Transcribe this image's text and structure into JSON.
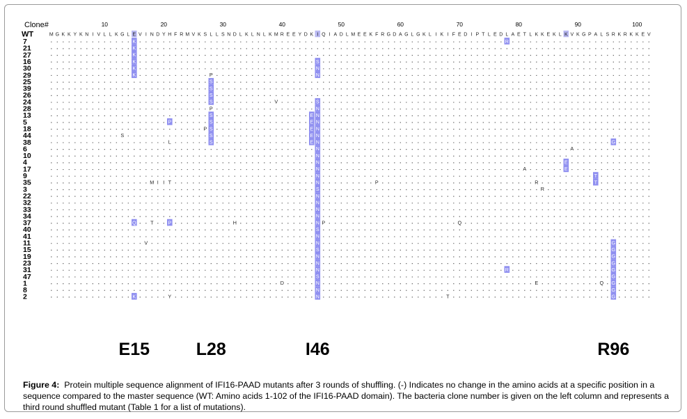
{
  "header": {
    "clone_label": "Clone#",
    "wt_label": "WT"
  },
  "ruler": [
    "10",
    "20",
    "30",
    "40",
    "50",
    "60",
    "70",
    "80",
    "90",
    "100"
  ],
  "wt_sequence": "MGKKYKNIVLLKGLEVINDYHFRMVKSLLSNDLKLNLKMREEYDKIQIADLMEEKFRGDAGLGKLIKIFEDIPTLEDLAETLKKEKLKVKGPALSRKRKKEV",
  "clones": [
    "7",
    "21",
    "27",
    "16",
    "30",
    "29",
    "25",
    "39",
    "26",
    "24",
    "28",
    "13",
    "5",
    "18",
    "44",
    "38",
    "6",
    "10",
    "4",
    "17",
    "9",
    "35",
    "3",
    "22",
    "32",
    "33",
    "34",
    "37",
    "40",
    "41",
    "11",
    "15",
    "19",
    "23",
    "31",
    "47",
    "1",
    "8",
    "2"
  ],
  "mutations": [
    {
      "row": 0,
      "pos": 15,
      "aa": "K",
      "hl": 1
    },
    {
      "row": 0,
      "pos": 78,
      "aa": "R",
      "hl": 1
    },
    {
      "row": 1,
      "pos": 15,
      "aa": "K",
      "hl": 1
    },
    {
      "row": 2,
      "pos": 15,
      "aa": "K",
      "hl": 1
    },
    {
      "row": 3,
      "pos": 15,
      "aa": "K",
      "hl": 1
    },
    {
      "row": 3,
      "pos": 46,
      "aa": "S",
      "hl": 1
    },
    {
      "row": 4,
      "pos": 15,
      "aa": "K",
      "hl": 1
    },
    {
      "row": 4,
      "pos": 46,
      "aa": "N",
      "hl": 1
    },
    {
      "row": 5,
      "pos": 15,
      "aa": "K",
      "hl": 1
    },
    {
      "row": 5,
      "pos": 28,
      "aa": "P",
      "hl": 0
    },
    {
      "row": 5,
      "pos": 46,
      "aa": "N",
      "hl": 1
    },
    {
      "row": 6,
      "pos": 28,
      "aa": "S",
      "hl": 1
    },
    {
      "row": 7,
      "pos": 28,
      "aa": "S",
      "hl": 1
    },
    {
      "row": 8,
      "pos": 28,
      "aa": "S",
      "hl": 1
    },
    {
      "row": 9,
      "pos": 28,
      "aa": "S",
      "hl": 1
    },
    {
      "row": 9,
      "pos": 39,
      "aa": "V",
      "hl": 0
    },
    {
      "row": 9,
      "pos": 46,
      "aa": "S",
      "hl": 1
    },
    {
      "row": 10,
      "pos": 28,
      "aa": "P",
      "hl": 0
    },
    {
      "row": 10,
      "pos": 46,
      "aa": "N",
      "hl": 1
    },
    {
      "row": 11,
      "pos": 28,
      "aa": "S",
      "hl": 1
    },
    {
      "row": 11,
      "pos": 45,
      "aa": "E",
      "hl": 1
    },
    {
      "row": 11,
      "pos": 46,
      "aa": "N",
      "hl": 1
    },
    {
      "row": 12,
      "pos": 21,
      "aa": "P",
      "hl": 1
    },
    {
      "row": 12,
      "pos": 28,
      "aa": "S",
      "hl": 1
    },
    {
      "row": 12,
      "pos": 45,
      "aa": "E",
      "hl": 1
    },
    {
      "row": 12,
      "pos": 46,
      "aa": "N",
      "hl": 1
    },
    {
      "row": 13,
      "pos": 27,
      "aa": "P",
      "hl": 0
    },
    {
      "row": 13,
      "pos": 28,
      "aa": "S",
      "hl": 1
    },
    {
      "row": 13,
      "pos": 45,
      "aa": "E",
      "hl": 1
    },
    {
      "row": 13,
      "pos": 46,
      "aa": "N",
      "hl": 1
    },
    {
      "row": 14,
      "pos": 13,
      "aa": "S",
      "hl": 0
    },
    {
      "row": 14,
      "pos": 28,
      "aa": "S",
      "hl": 1
    },
    {
      "row": 14,
      "pos": 45,
      "aa": "E",
      "hl": 1
    },
    {
      "row": 14,
      "pos": 46,
      "aa": "N",
      "hl": 1
    },
    {
      "row": 15,
      "pos": 21,
      "aa": "L",
      "hl": 0
    },
    {
      "row": 15,
      "pos": 28,
      "aa": "S",
      "hl": 1
    },
    {
      "row": 15,
      "pos": 45,
      "aa": "E",
      "hl": 1
    },
    {
      "row": 15,
      "pos": 46,
      "aa": "N",
      "hl": 1
    },
    {
      "row": 15,
      "pos": 96,
      "aa": "G",
      "hl": 1
    },
    {
      "row": 16,
      "pos": 46,
      "aa": "N",
      "hl": 1
    },
    {
      "row": 16,
      "pos": 89,
      "aa": "A",
      "hl": 0
    },
    {
      "row": 17,
      "pos": 46,
      "aa": "N",
      "hl": 1
    },
    {
      "row": 18,
      "pos": 46,
      "aa": "N",
      "hl": 1
    },
    {
      "row": 18,
      "pos": 88,
      "aa": "E",
      "hl": 1
    },
    {
      "row": 19,
      "pos": 46,
      "aa": "N",
      "hl": 1
    },
    {
      "row": 19,
      "pos": 81,
      "aa": "A",
      "hl": 0
    },
    {
      "row": 19,
      "pos": 88,
      "aa": "E",
      "hl": 1
    },
    {
      "row": 20,
      "pos": 46,
      "aa": "N",
      "hl": 1
    },
    {
      "row": 20,
      "pos": 93,
      "aa": "T",
      "hl": 1
    },
    {
      "row": 21,
      "pos": 18,
      "aa": "M",
      "hl": 0
    },
    {
      "row": 21,
      "pos": 19,
      "aa": "I",
      "hl": 0
    },
    {
      "row": 21,
      "pos": 20,
      "aa": "I",
      "hl": 0
    },
    {
      "row": 21,
      "pos": 21,
      "aa": "T",
      "hl": 0
    },
    {
      "row": 21,
      "pos": 46,
      "aa": "N",
      "hl": 1
    },
    {
      "row": 21,
      "pos": 56,
      "aa": "P",
      "hl": 0
    },
    {
      "row": 21,
      "pos": 83,
      "aa": "R",
      "hl": 0
    },
    {
      "row": 21,
      "pos": 93,
      "aa": "T",
      "hl": 1
    },
    {
      "row": 22,
      "pos": 46,
      "aa": "S",
      "hl": 1
    },
    {
      "row": 22,
      "pos": 84,
      "aa": "R",
      "hl": 0
    },
    {
      "row": 23,
      "pos": 46,
      "aa": "N",
      "hl": 1
    },
    {
      "row": 24,
      "pos": 46,
      "aa": "N",
      "hl": 1
    },
    {
      "row": 25,
      "pos": 46,
      "aa": "N",
      "hl": 1
    },
    {
      "row": 26,
      "pos": 46,
      "aa": "N",
      "hl": 1
    },
    {
      "row": 27,
      "pos": 15,
      "aa": "Q",
      "hl": 1
    },
    {
      "row": 27,
      "pos": 18,
      "aa": "T",
      "hl": 0
    },
    {
      "row": 27,
      "pos": 21,
      "aa": "P",
      "hl": 1
    },
    {
      "row": 27,
      "pos": 32,
      "aa": "H",
      "hl": 0
    },
    {
      "row": 27,
      "pos": 46,
      "aa": "N",
      "hl": 1
    },
    {
      "row": 27,
      "pos": 47,
      "aa": "P",
      "hl": 0
    },
    {
      "row": 27,
      "pos": 70,
      "aa": "Q",
      "hl": 0
    },
    {
      "row": 28,
      "pos": 46,
      "aa": "S",
      "hl": 1
    },
    {
      "row": 29,
      "pos": 46,
      "aa": "N",
      "hl": 1
    },
    {
      "row": 30,
      "pos": 17,
      "aa": "V",
      "hl": 0
    },
    {
      "row": 30,
      "pos": 46,
      "aa": "N",
      "hl": 1
    },
    {
      "row": 30,
      "pos": 96,
      "aa": "G",
      "hl": 1
    },
    {
      "row": 31,
      "pos": 46,
      "aa": "S",
      "hl": 1
    },
    {
      "row": 31,
      "pos": 96,
      "aa": "G",
      "hl": 1
    },
    {
      "row": 32,
      "pos": 46,
      "aa": "N",
      "hl": 1
    },
    {
      "row": 32,
      "pos": 96,
      "aa": "G",
      "hl": 1
    },
    {
      "row": 33,
      "pos": 46,
      "aa": "N",
      "hl": 1
    },
    {
      "row": 33,
      "pos": 96,
      "aa": "G",
      "hl": 1
    },
    {
      "row": 34,
      "pos": 46,
      "aa": "N",
      "hl": 1
    },
    {
      "row": 34,
      "pos": 78,
      "aa": "R",
      "hl": 1
    },
    {
      "row": 34,
      "pos": 96,
      "aa": "G",
      "hl": 1
    },
    {
      "row": 35,
      "pos": 46,
      "aa": "S",
      "hl": 1
    },
    {
      "row": 35,
      "pos": 96,
      "aa": "G",
      "hl": 1
    },
    {
      "row": 36,
      "pos": 40,
      "aa": "D",
      "hl": 0
    },
    {
      "row": 36,
      "pos": 46,
      "aa": "N",
      "hl": 1
    },
    {
      "row": 36,
      "pos": 83,
      "aa": "E",
      "hl": 0
    },
    {
      "row": 36,
      "pos": 94,
      "aa": "Q",
      "hl": 0
    },
    {
      "row": 36,
      "pos": 96,
      "aa": "G",
      "hl": 1
    },
    {
      "row": 37,
      "pos": 46,
      "aa": "N",
      "hl": 1
    },
    {
      "row": 37,
      "pos": 96,
      "aa": "G",
      "hl": 1
    },
    {
      "row": 38,
      "pos": 15,
      "aa": "K",
      "hl": 1
    },
    {
      "row": 38,
      "pos": 21,
      "aa": "Y",
      "hl": 0
    },
    {
      "row": 38,
      "pos": 46,
      "aa": "N",
      "hl": 1
    },
    {
      "row": 38,
      "pos": 68,
      "aa": "T",
      "hl": 0
    },
    {
      "row": 38,
      "pos": 96,
      "aa": "G",
      "hl": 1
    }
  ],
  "hotspots": [
    {
      "label": "E15",
      "pos": 15
    },
    {
      "label": "L28",
      "pos": 28
    },
    {
      "label": "I46",
      "pos": 46
    },
    {
      "label": "R96",
      "pos": 96
    }
  ],
  "colors": {
    "highlight": "#8f8ff0",
    "text": "#000000",
    "dot": "#555555",
    "border": "#9a9a9a"
  },
  "caption": {
    "label": "Figure 4:",
    "text": "Protein multiple sequence alignment of IFI16-PAAD mutants after 3 rounds of shuffling. (-) Indicates no change in the amino acids at a specific position in a sequence compared to the master sequence (WT: Amino acids 1-102 of the IFI16-PAAD domain). The bacteria clone number is given on the left column and represents a third round shuffled mutant (Table 1 for a list of mutations)."
  }
}
